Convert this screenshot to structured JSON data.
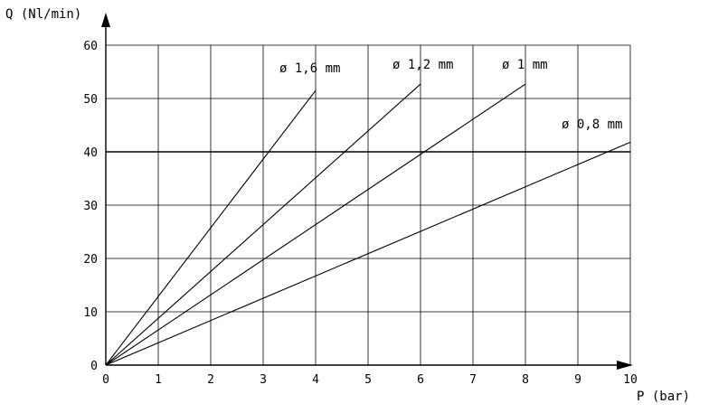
{
  "chart_data": {
    "type": "line",
    "xlabel": "P (bar)",
    "ylabel": "Q (Nl/min)",
    "xlim": [
      0,
      10
    ],
    "ylim": [
      0,
      60
    ],
    "x_ticks": [
      "0",
      "1",
      "2",
      "3",
      "4",
      "5",
      "6",
      "7",
      "8",
      "9",
      "10"
    ],
    "y_ticks": [
      "0",
      "10",
      "20",
      "30",
      "40",
      "50",
      "60"
    ],
    "grid": true,
    "series": [
      {
        "name": "ø 1,6 mm",
        "x": [
          0,
          4
        ],
        "y": [
          0,
          51.5
        ]
      },
      {
        "name": "ø 1,2 mm",
        "x": [
          0,
          6
        ],
        "y": [
          0,
          52.7
        ]
      },
      {
        "name": "ø 1 mm",
        "x": [
          0,
          8
        ],
        "y": [
          0,
          52.7
        ]
      },
      {
        "name": "ø 0,8 mm",
        "x": [
          0,
          10
        ],
        "y": [
          0,
          41.8
        ]
      }
    ]
  }
}
